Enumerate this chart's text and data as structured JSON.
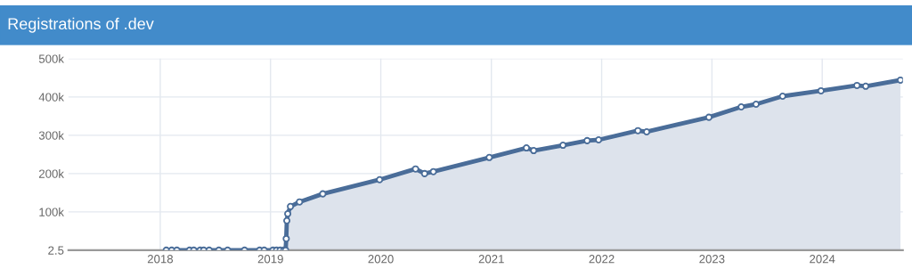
{
  "chart_data": {
    "type": "area",
    "title": "Registrations of .dev",
    "x": [
      "2018-01-21",
      "2018-02-08",
      "2018-02-25",
      "2018-04-08",
      "2018-04-22",
      "2018-05-13",
      "2018-05-25",
      "2018-06-12",
      "2018-07-14",
      "2018-08-12",
      "2018-10-07",
      "2018-11-26",
      "2018-12-11",
      "2019-01-09",
      "2019-01-21",
      "2019-02-02",
      "2019-02-14",
      "2019-02-20",
      "2019-02-22",
      "2019-02-24",
      "2019-02-27",
      "2019-03-08",
      "2019-04-07",
      "2019-06-23",
      "2019-12-28",
      "2020-04-25",
      "2020-05-25",
      "2020-06-23",
      "2020-12-25",
      "2021-04-27",
      "2021-05-21",
      "2021-08-26",
      "2021-11-14",
      "2021-12-22",
      "2022-05-01",
      "2022-05-30",
      "2022-12-22",
      "2023-04-08",
      "2023-05-27",
      "2023-08-23",
      "2023-12-28",
      "2024-04-25",
      "2024-05-24",
      "2024-09-16"
    ],
    "series": [
      {
        "color": "#4a6d99",
        "values": [
          2.5,
          2.5,
          2.5,
          2.5,
          2.5,
          2.5,
          2.5,
          2.5,
          2.5,
          2.5,
          2.5,
          2.5,
          2.5,
          2.5,
          2.5,
          2.5,
          2.5,
          2.5,
          30000,
          77000,
          95000,
          114000,
          126000,
          147000,
          184000,
          212000,
          200000,
          205000,
          242000,
          267000,
          260000,
          274000,
          286000,
          288000,
          312000,
          309000,
          347000,
          374000,
          381000,
          402000,
          416000,
          430000,
          428000,
          444000
        ]
      }
    ],
    "xlim": [
      "2017-03-03",
      "2024-09-24"
    ],
    "xticks": [
      {
        "value": "2018",
        "label": "2018"
      },
      {
        "value": "2019",
        "label": "2019"
      },
      {
        "value": "2020",
        "label": "2020"
      },
      {
        "value": "2021",
        "label": "2021"
      },
      {
        "value": "2022",
        "label": "2022"
      },
      {
        "value": "2023",
        "label": "2023"
      },
      {
        "value": "2024",
        "label": "2024"
      }
    ],
    "ylim": [
      2.5,
      500000
    ],
    "yticks": [
      2.5,
      {
        "value": 100000,
        "label": "100k"
      },
      {
        "value": 200000,
        "label": "200k"
      },
      {
        "value": 300000,
        "label": "300k"
      },
      {
        "value": 400000,
        "label": "400k"
      },
      {
        "value": 500000,
        "label": "500k"
      }
    ],
    "grid": true,
    "legend": false,
    "marker": "circle",
    "line_style": "solid"
  }
}
